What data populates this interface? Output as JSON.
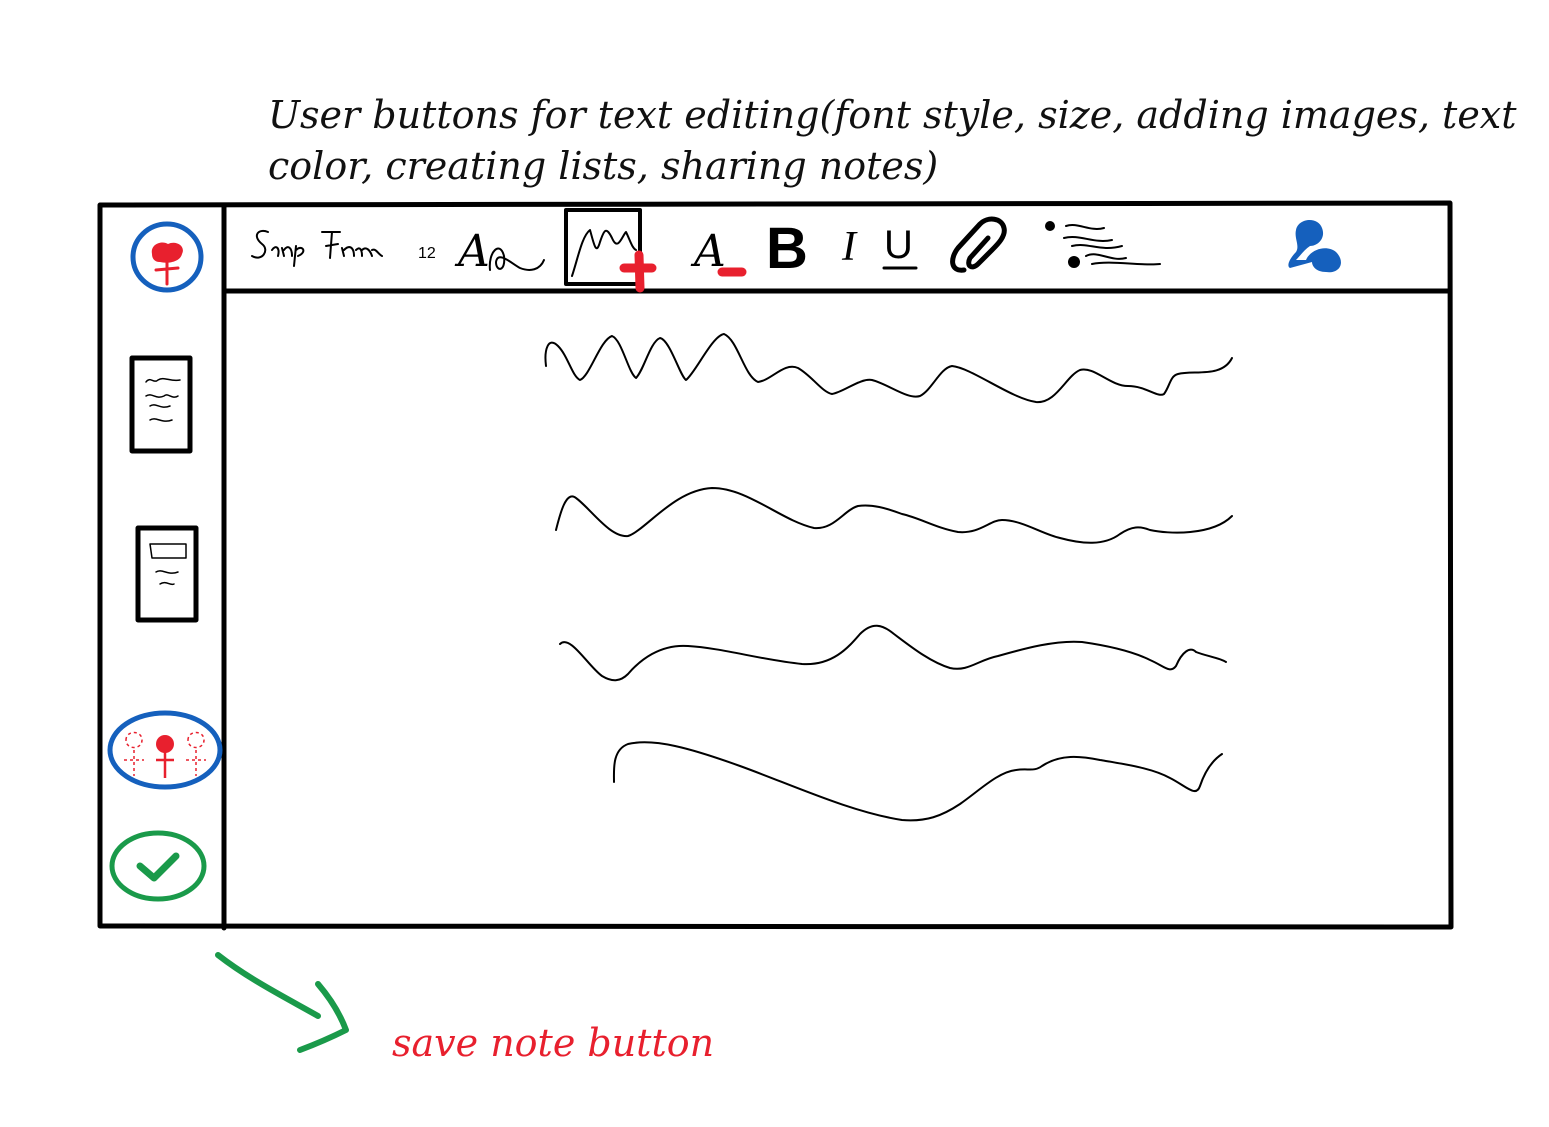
{
  "annotations": {
    "toolbar_note_line1": "User buttons for text editing(font style, size, adding images, text",
    "toolbar_note_line2": "color, creating lists, sharing notes)",
    "save_note": "save note button"
  },
  "toolbar": {
    "font_size": "12",
    "font_size_letter": "A",
    "text_color_letter": "A",
    "bold_letter": "B",
    "italic_letter": "I",
    "underline_letter": "U"
  },
  "sidebar": {
    "items": [
      {
        "icon": "profile-icon"
      },
      {
        "icon": "text-note-icon"
      },
      {
        "icon": "image-note-icon"
      },
      {
        "icon": "shared-users-icon"
      },
      {
        "icon": "checkmark-icon"
      }
    ]
  },
  "icons": {
    "font-style": "font-style-icon",
    "add-image": "add-image-icon",
    "link": "link-icon",
    "list": "bullet-list-icon",
    "share": "share-icon"
  },
  "colors": {
    "ink": "#000000",
    "accent_blue": "#1560bd",
    "accent_red": "#e8202e",
    "accent_green": "#1a9a4a"
  }
}
